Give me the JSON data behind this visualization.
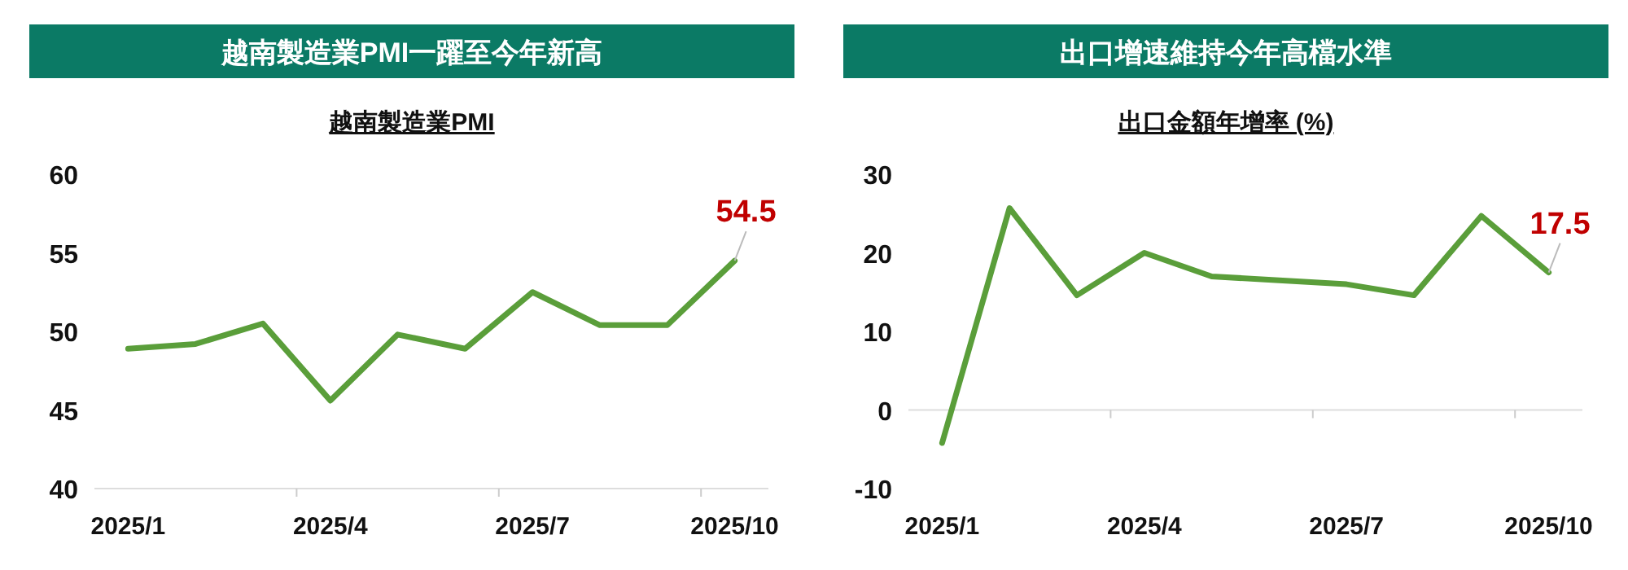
{
  "chart_data": [
    {
      "type": "line",
      "title": "越南製造業PMI一躍至今年新高",
      "subtitle": "越南製造業PMI",
      "categories": [
        "2025/1",
        null,
        null,
        "2025/4",
        null,
        null,
        "2025/7",
        null,
        null,
        "2025/10"
      ],
      "series": [
        {
          "color": "#5a9e3a",
          "values": [
            48.9,
            49.2,
            50.5,
            45.6,
            49.8,
            48.9,
            52.5,
            50.4,
            50.4,
            54.5
          ]
        }
      ],
      "ylim": [
        40,
        60
      ],
      "yticks": [
        40,
        45,
        50,
        55,
        60
      ],
      "annotations": [
        {
          "text": "54.5",
          "x": "2025/10",
          "y": 54.5
        }
      ]
    },
    {
      "type": "line",
      "title": "出口增速維持今年高檔水準",
      "subtitle": "出口金額年增率 (%)",
      "categories": [
        "2025/1",
        null,
        null,
        "2025/4",
        null,
        null,
        "2025/7",
        null,
        null,
        "2025/10"
      ],
      "series": [
        {
          "color": "#5a9e3a",
          "values": [
            -4.2,
            25.7,
            14.6,
            20.0,
            17.0,
            16.5,
            16.0,
            14.6,
            24.7,
            17.5
          ]
        }
      ],
      "ylim": [
        -10,
        30
      ],
      "yticks": [
        -10,
        0,
        10,
        20,
        30
      ],
      "annotations": [
        {
          "text": "17.5",
          "x": "2025/10",
          "y": 17.5
        }
      ]
    }
  ]
}
